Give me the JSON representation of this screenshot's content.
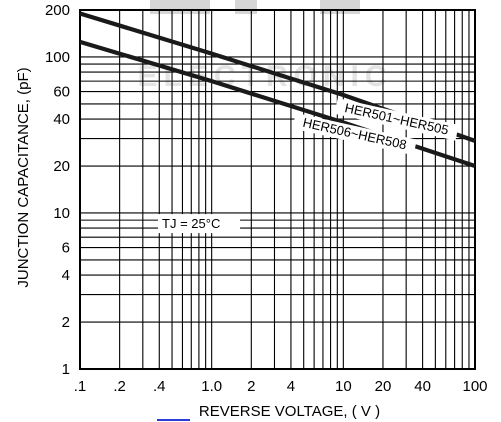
{
  "chart_data": {
    "type": "line",
    "title": "",
    "xlabel": "REVERSE VOLTAGE, ( V )",
    "ylabel": "JUNCTION CAPACITANCE, (pF)",
    "x_scale": "log",
    "y_scale": "log",
    "xlim": [
      0.1,
      100
    ],
    "ylim": [
      1,
      200
    ],
    "grid": true,
    "x_ticks": [
      0.1,
      0.2,
      0.4,
      1.0,
      2,
      4,
      10,
      20,
      40,
      100
    ],
    "x_tick_labels": [
      ".1",
      ".2",
      ".4",
      "1.0",
      "2",
      "4",
      "10",
      "20",
      "40",
      "100"
    ],
    "y_ticks": [
      1,
      2,
      4,
      6,
      10,
      20,
      40,
      60,
      100,
      200
    ],
    "y_tick_labels": [
      "1",
      "2",
      "4",
      "6",
      "10",
      "20",
      "40",
      "60",
      "100",
      "200"
    ],
    "series": [
      {
        "name": "HER501~HER505",
        "x": [
          0.1,
          1,
          10,
          100
        ],
        "y": [
          190,
          105,
          57,
          29
        ]
      },
      {
        "name": "HER506~HER508",
        "x": [
          0.1,
          1,
          10,
          100
        ],
        "y": [
          125,
          70,
          38,
          20
        ]
      }
    ],
    "annotations": [
      {
        "text": "TJ = 25°C",
        "x": 0.42,
        "y": 8
      }
    ]
  },
  "watermark": {
    "text": "ELECTRONIC"
  },
  "colors": {
    "series_line": "#1a1a1a",
    "grid": "#000000",
    "watermark": "#d9d9d9",
    "underline_accent": "#2a3bd6"
  }
}
